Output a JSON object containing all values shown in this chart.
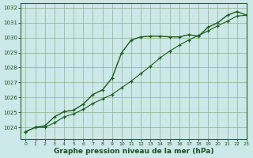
{
  "xlabel": "Graphe pression niveau de la mer (hPa)",
  "background_color": "#cce8e8",
  "grid_color": "#99bb99",
  "line_color1": "#1a5c1a",
  "line_color2": "#1a5c1a",
  "xlim": [
    -0.5,
    23
  ],
  "ylim": [
    1023.2,
    1032.3
  ],
  "yticks": [
    1024,
    1025,
    1026,
    1027,
    1028,
    1029,
    1030,
    1031,
    1032
  ],
  "xticks": [
    0,
    1,
    2,
    3,
    4,
    5,
    6,
    7,
    8,
    9,
    10,
    11,
    12,
    13,
    14,
    15,
    16,
    17,
    18,
    19,
    20,
    21,
    22,
    23
  ],
  "series1_x": [
    0,
    1,
    2,
    3,
    4,
    5,
    6,
    7,
    8,
    9,
    10,
    11,
    12,
    13,
    14,
    15,
    16,
    17,
    18,
    19,
    20,
    21,
    22,
    23
  ],
  "series1_y": [
    1023.7,
    1024.0,
    1024.1,
    1024.7,
    1025.05,
    1025.15,
    1025.55,
    1026.2,
    1026.5,
    1027.3,
    1029.0,
    1029.85,
    1030.05,
    1030.1,
    1030.1,
    1030.05,
    1030.05,
    1030.2,
    1030.1,
    1030.7,
    1031.0,
    1031.5,
    1031.75,
    1031.5
  ],
  "series2_x": [
    0,
    1,
    2,
    3,
    4,
    5,
    6,
    7,
    8,
    9,
    10,
    11,
    12,
    13,
    14,
    15,
    16,
    17,
    18,
    19,
    20,
    21,
    22,
    23
  ],
  "series2_y": [
    1023.7,
    1024.0,
    1024.0,
    1024.3,
    1024.7,
    1024.9,
    1025.2,
    1025.6,
    1025.9,
    1026.2,
    1026.65,
    1027.1,
    1027.6,
    1028.1,
    1028.65,
    1029.1,
    1029.5,
    1029.85,
    1030.15,
    1030.45,
    1030.8,
    1031.1,
    1031.45,
    1031.5
  ]
}
